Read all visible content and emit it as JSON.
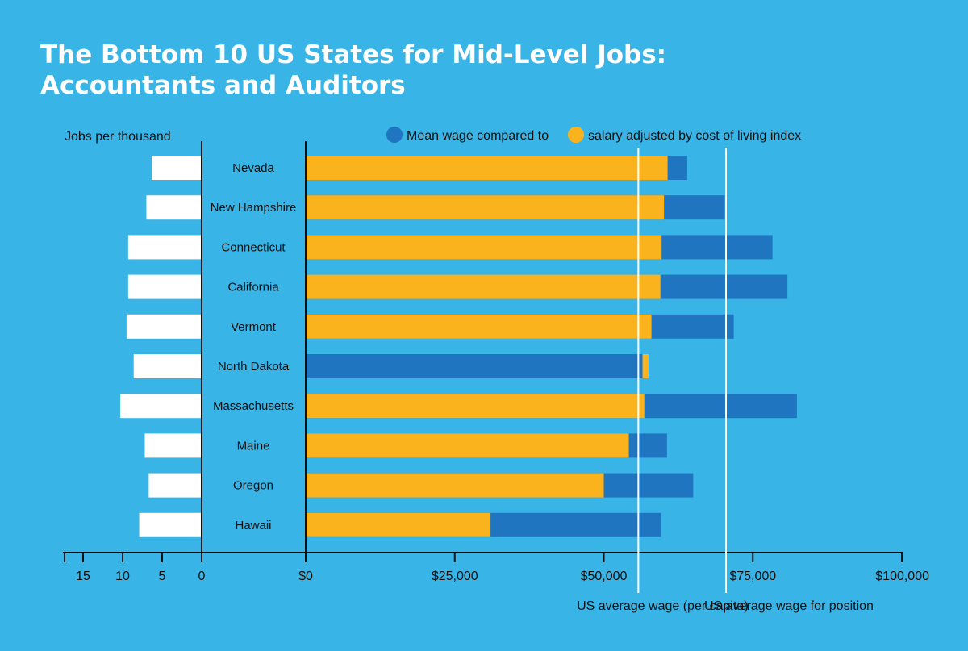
{
  "chart_data": {
    "type": "bar",
    "title_lines": [
      "The Bottom 10 US States for Mid-Level Jobs:",
      "Accountants and Auditors"
    ],
    "left_axis_label": "Jobs per thousand",
    "legend": {
      "mean_label": "Mean wage compared to",
      "adjusted_label": "salary adjusted by cost of living index"
    },
    "colors": {
      "mean": "#1f75bf",
      "adjusted": "#fbb31d",
      "jobs": "#ffffff",
      "axis": "#111111",
      "reference": "#ffffff"
    },
    "categories": [
      "Nevada",
      "New Hampshire",
      "Connecticut",
      "California",
      "Vermont",
      "North Dakota",
      "Massachusetts",
      "Maine",
      "Oregon",
      "Hawaii"
    ],
    "series": [
      {
        "name": "Mean wage compared to",
        "values": [
          64000,
          70300,
          78300,
          80800,
          71800,
          56500,
          82400,
          60600,
          65000,
          59600
        ]
      },
      {
        "name": "salary adjusted by cost of living index",
        "values": [
          60700,
          60100,
          59700,
          59500,
          58000,
          57500,
          56800,
          54200,
          50000,
          31000
        ]
      }
    ],
    "jobs_per_thousand": [
      6.3,
      7.0,
      9.3,
      9.3,
      9.5,
      8.6,
      10.3,
      7.2,
      6.7,
      7.9
    ],
    "jobs_ticks": [
      15,
      10,
      5,
      0
    ],
    "jobs_range": [
      0,
      17
    ],
    "wage_ticks": [
      {
        "value": 0,
        "label": "$0"
      },
      {
        "value": 25000,
        "label": "$25,000"
      },
      {
        "value": 50000,
        "label": "$50,000"
      },
      {
        "value": 75000,
        "label": "$75,000"
      },
      {
        "value": 100000,
        "label": "$100,000"
      }
    ],
    "wage_range": [
      0,
      100000
    ],
    "reference_lines": [
      {
        "label": "US average wage (per capita)",
        "value": 55800
      },
      {
        "label": "US average wage for position",
        "value": 70500
      }
    ]
  }
}
